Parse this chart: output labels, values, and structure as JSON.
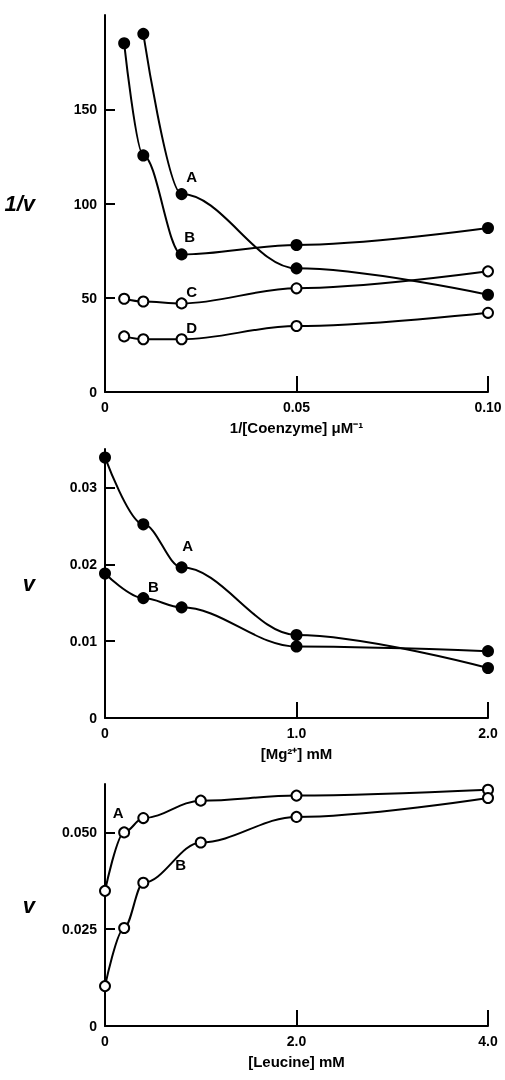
{
  "chart_data": [
    {
      "type": "line",
      "xlabel": "1/[Coenzyme] μM⁻¹",
      "ylabel": "1/v",
      "xlim": [
        0,
        0.1
      ],
      "ylim": [
        0,
        200
      ],
      "xticks": [
        {
          "value": 0,
          "label": "0"
        },
        0.05,
        {
          "value": 0.1,
          "label": "0.10"
        }
      ],
      "yticks": [
        {
          "value": 0,
          "label": "0"
        },
        50,
        100,
        150
      ],
      "grid": false,
      "marker": "circle",
      "series": [
        {
          "name": "A",
          "color": "#000000",
          "x": [
            0.01,
            0.02,
            0.05,
            0.1
          ],
          "values": [
            190,
            105,
            65.6,
            51.6
          ]
        },
        {
          "name": "B",
          "color": "#000000",
          "x": [
            0.005,
            0.01,
            0.02,
            0.05,
            0.1
          ],
          "values": [
            185,
            125.5,
            73,
            78,
            87
          ]
        },
        {
          "name": "C",
          "color": "#000000",
          "x": [
            0.005,
            0.01,
            0.02,
            0.05,
            0.1
          ],
          "values": [
            49.5,
            48,
            47,
            55,
            64
          ]
        },
        {
          "name": "D",
          "color": "#000000",
          "x": [
            0.005,
            0.01,
            0.02,
            0.05,
            0.1
          ],
          "values": [
            29.5,
            28,
            28,
            35,
            42
          ]
        }
      ]
    },
    {
      "type": "line",
      "xlabel": "[Mg²⁺] mM",
      "ylabel": "v",
      "xlim": [
        0,
        2
      ],
      "ylim": [
        0,
        0.035
      ],
      "xticks": [
        {
          "value": 0,
          "label": "0"
        },
        {
          "value": 1,
          "label": "1.0"
        },
        {
          "value": 2,
          "label": "2.0"
        }
      ],
      "yticks": [
        {
          "value": 0,
          "label": "0"
        },
        0.01,
        0.02,
        0.03
      ],
      "grid": false,
      "marker": "circle",
      "series": [
        {
          "name": "A",
          "color": "#000000",
          "x": [
            0,
            0.2,
            0.4,
            1,
            2
          ],
          "values": [
            0.0339,
            0.0252,
            0.0196,
            0.0108,
            0.0065
          ]
        },
        {
          "name": "B",
          "color": "#000000",
          "x": [
            0,
            0.2,
            0.4,
            1,
            2
          ],
          "values": [
            0.0188,
            0.0156,
            0.0144,
            0.0093,
            0.0087
          ]
        }
      ]
    },
    {
      "type": "line",
      "xlabel": "[Leucine] mM",
      "ylabel": "v",
      "xlim": [
        0,
        4
      ],
      "ylim": [
        0,
        0.0625
      ],
      "xticks": [
        {
          "value": 0,
          "label": "0"
        },
        {
          "value": 2,
          "label": "2.0"
        },
        {
          "value": 4,
          "label": "4.0"
        }
      ],
      "yticks": [
        {
          "value": 0,
          "label": "0"
        },
        {
          "value": 0.025,
          "label": "0.025"
        },
        {
          "value": 0.05,
          "label": "0.050"
        }
      ],
      "grid": false,
      "marker": "circle",
      "series": [
        {
          "name": "A",
          "color": "#000000",
          "x": [
            0,
            0.2,
            0.4,
            1,
            2,
            4
          ],
          "values": [
            0.0349,
            0.05,
            0.0537,
            0.0582,
            0.0595,
            0.061
          ]
        },
        {
          "name": "B",
          "color": "#000000",
          "x": [
            0,
            0.2,
            0.4,
            1,
            2,
            4
          ],
          "values": [
            0.0103,
            0.0253,
            0.037,
            0.0474,
            0.054,
            0.0589
          ]
        }
      ]
    }
  ]
}
